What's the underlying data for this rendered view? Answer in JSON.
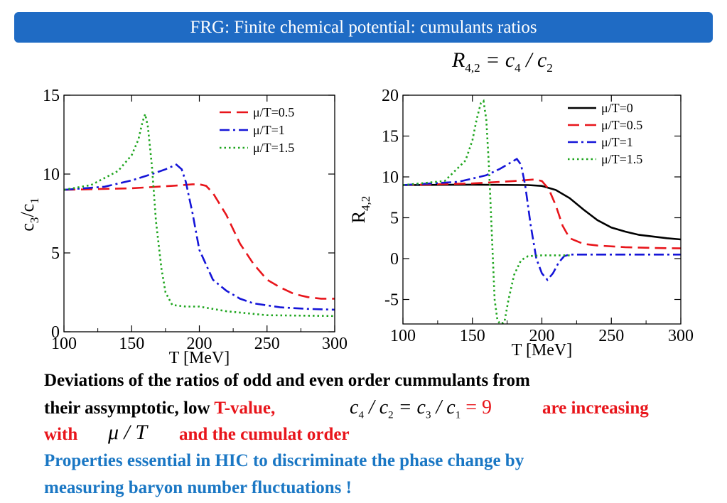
{
  "banner": {
    "title": "FRG: Finite chemical potential: cumulants ratios"
  },
  "formula": {
    "lhs": "R",
    "lhs_sub": "4,2",
    "eq": " = c",
    "c4_sub": "4",
    "slash": " / c",
    "c2_sub": "2"
  },
  "chart_data": [
    {
      "type": "line",
      "xlabel": "T [MeV]",
      "ylabel": "c3/c1",
      "xlim": [
        100,
        300
      ],
      "ylim": [
        0,
        15
      ],
      "xticks": [
        100,
        150,
        200,
        250,
        300
      ],
      "yticks": [
        0,
        5,
        10,
        15
      ],
      "grid": false,
      "legend_position": "top-right",
      "series": [
        {
          "name": "μ/T=0.5",
          "color": "#e8151b",
          "dash": "long-dash",
          "x": [
            100,
            150,
            180,
            195,
            200,
            205,
            210,
            220,
            230,
            240,
            250,
            260,
            270,
            280,
            290,
            300
          ],
          "y": [
            9.0,
            9.1,
            9.25,
            9.35,
            9.35,
            9.25,
            8.8,
            7.4,
            5.6,
            4.3,
            3.3,
            2.8,
            2.4,
            2.2,
            2.1,
            2.1
          ]
        },
        {
          "name": "μ/T=1",
          "color": "#1515d8",
          "dash": "dash-dot",
          "x": [
            100,
            130,
            150,
            165,
            175,
            183,
            187,
            190,
            195,
            200,
            210,
            220,
            230,
            240,
            260,
            280,
            300
          ],
          "y": [
            9.0,
            9.2,
            9.6,
            10.0,
            10.3,
            10.6,
            10.3,
            9.5,
            7.5,
            5.2,
            3.3,
            2.6,
            2.1,
            1.8,
            1.55,
            1.45,
            1.4
          ]
        },
        {
          "name": "μ/T=1.5",
          "color": "#1ea51e",
          "dash": "dotted",
          "x": [
            100,
            120,
            140,
            150,
            155,
            158,
            160,
            162,
            165,
            168,
            172,
            175,
            180,
            190,
            200,
            220,
            250,
            300
          ],
          "y": [
            9.0,
            9.3,
            10.2,
            11.2,
            12.2,
            13.3,
            13.8,
            13.0,
            10.5,
            7.0,
            4.0,
            2.5,
            1.7,
            1.6,
            1.6,
            1.3,
            1.05,
            1.0
          ]
        }
      ]
    },
    {
      "type": "line",
      "xlabel": "T [MeV]",
      "ylabel": "R4,2",
      "xlim": [
        100,
        300
      ],
      "ylim": [
        -8,
        20
      ],
      "xticks": [
        100,
        150,
        200,
        250,
        300
      ],
      "yticks": [
        -5,
        0,
        5,
        10,
        15,
        20
      ],
      "grid": false,
      "legend_position": "top-right",
      "series": [
        {
          "name": "μ/T=0",
          "color": "#000000",
          "dash": "solid",
          "x": [
            100,
            150,
            190,
            200,
            210,
            220,
            230,
            240,
            250,
            260,
            270,
            280,
            290,
            300
          ],
          "y": [
            9.0,
            9.05,
            9.0,
            8.9,
            8.4,
            7.4,
            6.0,
            4.7,
            3.8,
            3.3,
            2.9,
            2.7,
            2.5,
            2.35
          ]
        },
        {
          "name": "μ/T=0.5",
          "color": "#e8151b",
          "dash": "long-dash",
          "x": [
            100,
            150,
            180,
            195,
            200,
            205,
            210,
            215,
            220,
            230,
            240,
            260,
            280,
            300
          ],
          "y": [
            9.0,
            9.2,
            9.5,
            9.7,
            9.5,
            8.5,
            6.5,
            4.0,
            2.5,
            1.8,
            1.6,
            1.4,
            1.3,
            1.25
          ]
        },
        {
          "name": "μ/T=1",
          "color": "#1515d8",
          "dash": "dash-dot",
          "x": [
            100,
            140,
            160,
            170,
            178,
            182,
            185,
            188,
            192,
            196,
            200,
            204,
            208,
            212,
            216,
            220,
            240,
            260,
            300
          ],
          "y": [
            9.0,
            9.4,
            10.2,
            11.0,
            11.8,
            12.2,
            11.5,
            9.0,
            4.0,
            0.0,
            -1.8,
            -2.6,
            -1.8,
            -0.5,
            0.3,
            0.5,
            0.5,
            0.5,
            0.5
          ]
        },
        {
          "name": "μ/T=1.5",
          "color": "#1ea51e",
          "dash": "dotted",
          "x": [
            100,
            130,
            145,
            150,
            153,
            156,
            158,
            160,
            162,
            164,
            166,
            168,
            170,
            173,
            176,
            180,
            185,
            190,
            200,
            220
          ],
          "y": [
            9.0,
            9.5,
            12.0,
            14.5,
            17.0,
            19.0,
            19.3,
            17.0,
            11.0,
            3.0,
            -5.0,
            -7.5,
            -8.0,
            -7.8,
            -5.0,
            -2.0,
            -0.2,
            0.3,
            0.4,
            0.4
          ]
        }
      ]
    }
  ],
  "text": {
    "line1": "Deviations  of the ratios of odd and even  order cummulants   from",
    "line2_a": "their assymptotic, low ",
    "line2_red": "T-value,",
    "math_c4": "c",
    "math_c4_sub": "4",
    "math_mid1": " / c",
    "math_c2_sub": "2",
    "math_eq": " = c",
    "math_c3_sub": "3",
    "math_mid2": " / c",
    "math_c1_sub": "1",
    "math_eq9": " = 9",
    "line2_end": "are increasing",
    "line3_with": "with",
    "line3_mu": "μ / T",
    "line3_end": "and the cumulat order",
    "line4": "Properties essential in  HIC to discriminate the phase change  by",
    "line5": "measuring  baryon number fluctuations !"
  }
}
